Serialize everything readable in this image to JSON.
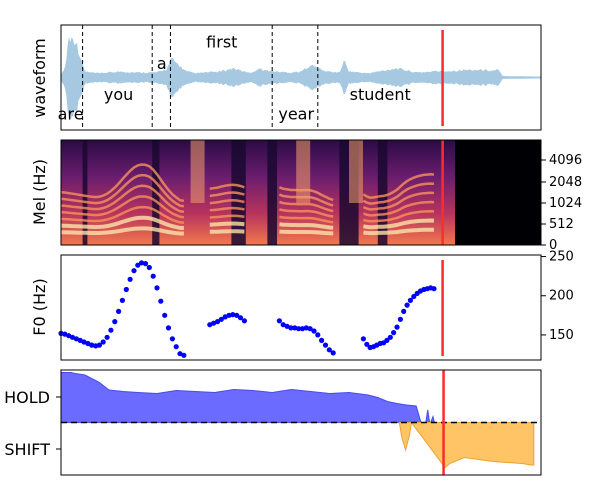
{
  "colors": {
    "waveform": "#a6c8e0",
    "f0_points": "#0000ff",
    "hold_fill": "#6b6bff",
    "shift_fill": "#ffc466",
    "cursor": "#ff2b2b",
    "boundary": "#000000"
  },
  "chart_data": [
    {
      "type": "area",
      "panel": "waveform",
      "ylabel": "waveform",
      "grid": false,
      "x_range": [
        0,
        1
      ],
      "y_range": [
        -1.1,
        1.1
      ],
      "envelope": {
        "x": [
          0.0,
          0.01,
          0.015,
          0.03,
          0.04,
          0.05,
          0.06,
          0.08,
          0.12,
          0.16,
          0.2,
          0.22,
          0.23,
          0.26,
          0.28,
          0.3,
          0.33,
          0.36,
          0.38,
          0.4,
          0.41,
          0.43,
          0.46,
          0.48,
          0.5,
          0.52,
          0.55,
          0.58,
          0.59,
          0.6,
          0.62,
          0.64,
          0.66,
          0.7,
          0.74,
          0.76,
          0.78,
          0.8,
          0.82,
          0.84,
          0.86,
          0.88,
          0.9,
          0.91,
          0.92,
          1.0
        ],
        "amp": [
          0.05,
          0.3,
          0.95,
          0.9,
          0.5,
          0.15,
          0.12,
          0.1,
          0.14,
          0.12,
          0.12,
          0.2,
          0.45,
          0.15,
          0.1,
          0.12,
          0.14,
          0.22,
          0.14,
          0.12,
          0.22,
          0.16,
          0.13,
          0.12,
          0.14,
          0.3,
          0.15,
          0.12,
          0.4,
          0.15,
          0.12,
          0.1,
          0.14,
          0.22,
          0.12,
          0.13,
          0.15,
          0.15,
          0.16,
          0.18,
          0.18,
          0.18,
          0.16,
          0.2,
          0.03,
          0.02
        ]
      },
      "word_boundaries": [
        0.045,
        0.19,
        0.228,
        0.44,
        0.535
      ],
      "words": [
        {
          "text": "are",
          "x": 0.02,
          "y": -0.75
        },
        {
          "text": "you",
          "x": 0.12,
          "y": -0.35
        },
        {
          "text": "a",
          "x": 0.21,
          "y": 0.3
        },
        {
          "text": "first",
          "x": 0.335,
          "y": 0.75
        },
        {
          "text": "year",
          "x": 0.49,
          "y": -0.75
        },
        {
          "text": "student",
          "x": 0.665,
          "y": -0.35
        }
      ],
      "cursor_x": 0.795
    },
    {
      "type": "heatmap",
      "panel": "mel",
      "ylabel": "Mel (Hz)",
      "grid": false,
      "y_ticks": [
        "0",
        "512",
        "1024",
        "2048",
        "4096"
      ],
      "x_range": [
        0,
        1
      ],
      "cursor_x": 0.795
    },
    {
      "type": "scatter",
      "panel": "f0",
      "ylabel": "F0 (Hz)",
      "grid": false,
      "ylim": [
        118,
        252
      ],
      "y_ticks": [
        150,
        200,
        250
      ],
      "x_range": [
        0,
        1
      ],
      "segments": [
        {
          "x": [
            0.0,
            0.008,
            0.016,
            0.024,
            0.032,
            0.04,
            0.048,
            0.056,
            0.064,
            0.072,
            0.08,
            0.088,
            0.096,
            0.104,
            0.112,
            0.12,
            0.128,
            0.136,
            0.144,
            0.152,
            0.16,
            0.168,
            0.176,
            0.184,
            0.192,
            0.2,
            0.208,
            0.216,
            0.224,
            0.232,
            0.24,
            0.248,
            0.256
          ],
          "y": [
            152,
            151,
            149,
            147,
            145,
            143,
            141,
            139,
            137,
            136,
            137,
            141,
            147,
            156,
            167,
            180,
            194,
            208,
            221,
            232,
            239,
            242,
            241,
            236,
            225,
            210,
            193,
            175,
            159,
            145,
            135,
            126,
            124
          ]
        },
        {
          "x": [
            0.31,
            0.318,
            0.326,
            0.334,
            0.342,
            0.35,
            0.358,
            0.366,
            0.374,
            0.382
          ],
          "y": [
            163,
            165,
            167,
            170,
            173,
            175,
            176,
            175,
            172,
            168
          ]
        },
        {
          "x": [
            0.455,
            0.463,
            0.471,
            0.479,
            0.487,
            0.495,
            0.503,
            0.511,
            0.519,
            0.527,
            0.535,
            0.543,
            0.551,
            0.559,
            0.567
          ],
          "y": [
            168,
            163,
            161,
            159,
            159,
            158,
            158,
            159,
            158,
            155,
            150,
            143,
            137,
            131,
            127
          ]
        },
        {
          "x": [
            0.63,
            0.637,
            0.644,
            0.651,
            0.658,
            0.665,
            0.672,
            0.679,
            0.686,
            0.693,
            0.7,
            0.707,
            0.714,
            0.721,
            0.728,
            0.735,
            0.742,
            0.749,
            0.756,
            0.763,
            0.77,
            0.777
          ],
          "y": [
            145,
            138,
            134,
            135,
            137,
            139,
            140,
            143,
            147,
            153,
            160,
            170,
            180,
            188,
            194,
            199,
            203,
            206,
            208,
            209,
            210,
            209
          ]
        }
      ],
      "cursor_x": 0.795
    },
    {
      "type": "area",
      "panel": "turn",
      "categories": [
        "HOLD",
        "SHIFT"
      ],
      "grid": false,
      "ylim": [
        -1.05,
        1.05
      ],
      "x_range": [
        0,
        1
      ],
      "threshold": 0,
      "hold": {
        "x": [
          0.0,
          0.02,
          0.03,
          0.05,
          0.08,
          0.1,
          0.13,
          0.16,
          0.2,
          0.24,
          0.28,
          0.32,
          0.36,
          0.4,
          0.44,
          0.48,
          0.52,
          0.56,
          0.6,
          0.64,
          0.66,
          0.68,
          0.7,
          0.72,
          0.74,
          0.75,
          0.752,
          0.76,
          0.764,
          0.768,
          0.77,
          0.775,
          0.778
        ],
        "y": [
          1.0,
          1.0,
          0.98,
          0.95,
          0.8,
          0.65,
          0.62,
          0.6,
          0.58,
          0.64,
          0.62,
          0.6,
          0.66,
          0.64,
          0.6,
          0.66,
          0.62,
          0.58,
          0.6,
          0.55,
          0.5,
          0.42,
          0.38,
          0.35,
          0.33,
          0.0,
          0.0,
          0.0,
          0.25,
          0.0,
          0.0,
          0.12,
          0.0
        ]
      },
      "shift": {
        "x": [
          0.705,
          0.71,
          0.718,
          0.726,
          0.73,
          0.8,
          0.81,
          0.84,
          0.87,
          0.9,
          0.93,
          0.96,
          0.98,
          0.985
        ],
        "y": [
          0.0,
          -0.3,
          -0.55,
          -0.25,
          0.0,
          -0.9,
          -0.82,
          -0.7,
          -0.74,
          -0.78,
          -0.8,
          -0.82,
          -0.85,
          -0.85
        ]
      },
      "cursor_x": 0.797
    }
  ]
}
